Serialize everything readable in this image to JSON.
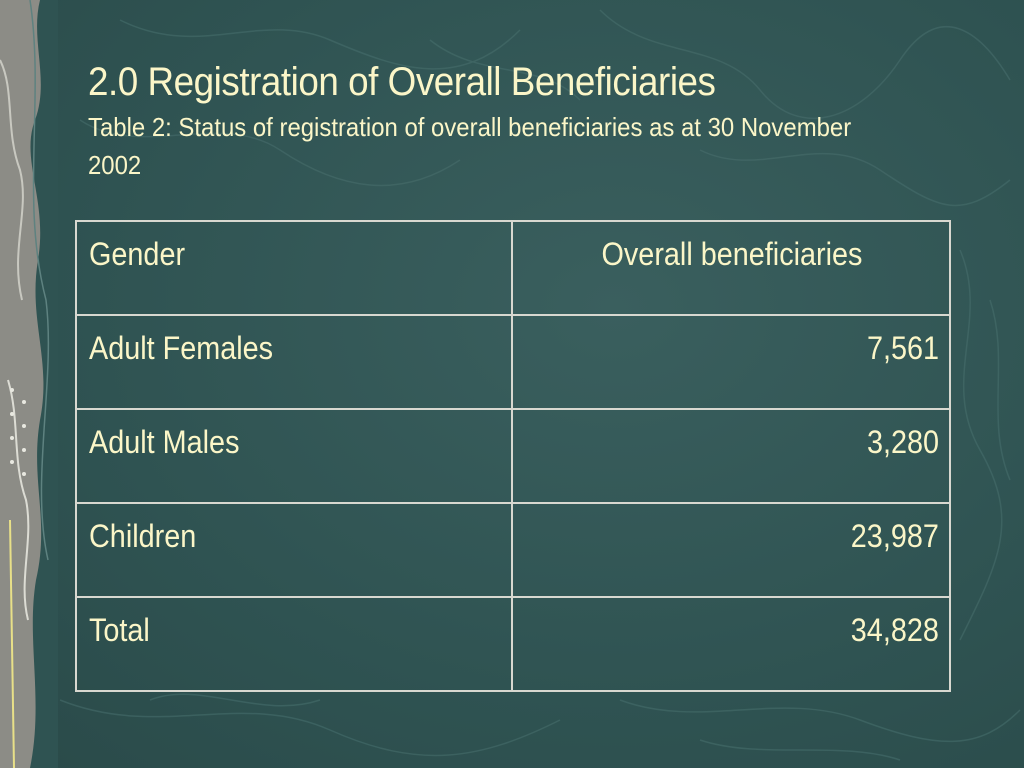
{
  "slide": {
    "title": "2.0 Registration of Overall Beneficiaries",
    "subtitle": "Table 2: Status of registration of overall beneficiaries as at 30 November 2002",
    "colors": {
      "background": "#2f5352",
      "text": "#fbf6c8",
      "table_border": "#d8d8d0"
    }
  },
  "table": {
    "headers": [
      "Gender",
      "Overall beneficiaries"
    ],
    "rows": [
      {
        "label": "Adult Females",
        "value": "7,561"
      },
      {
        "label": "Adult Males",
        "value": "3,280"
      },
      {
        "label": "Children",
        "value": "23,987"
      },
      {
        "label": "Total",
        "value": "34,828"
      }
    ]
  }
}
